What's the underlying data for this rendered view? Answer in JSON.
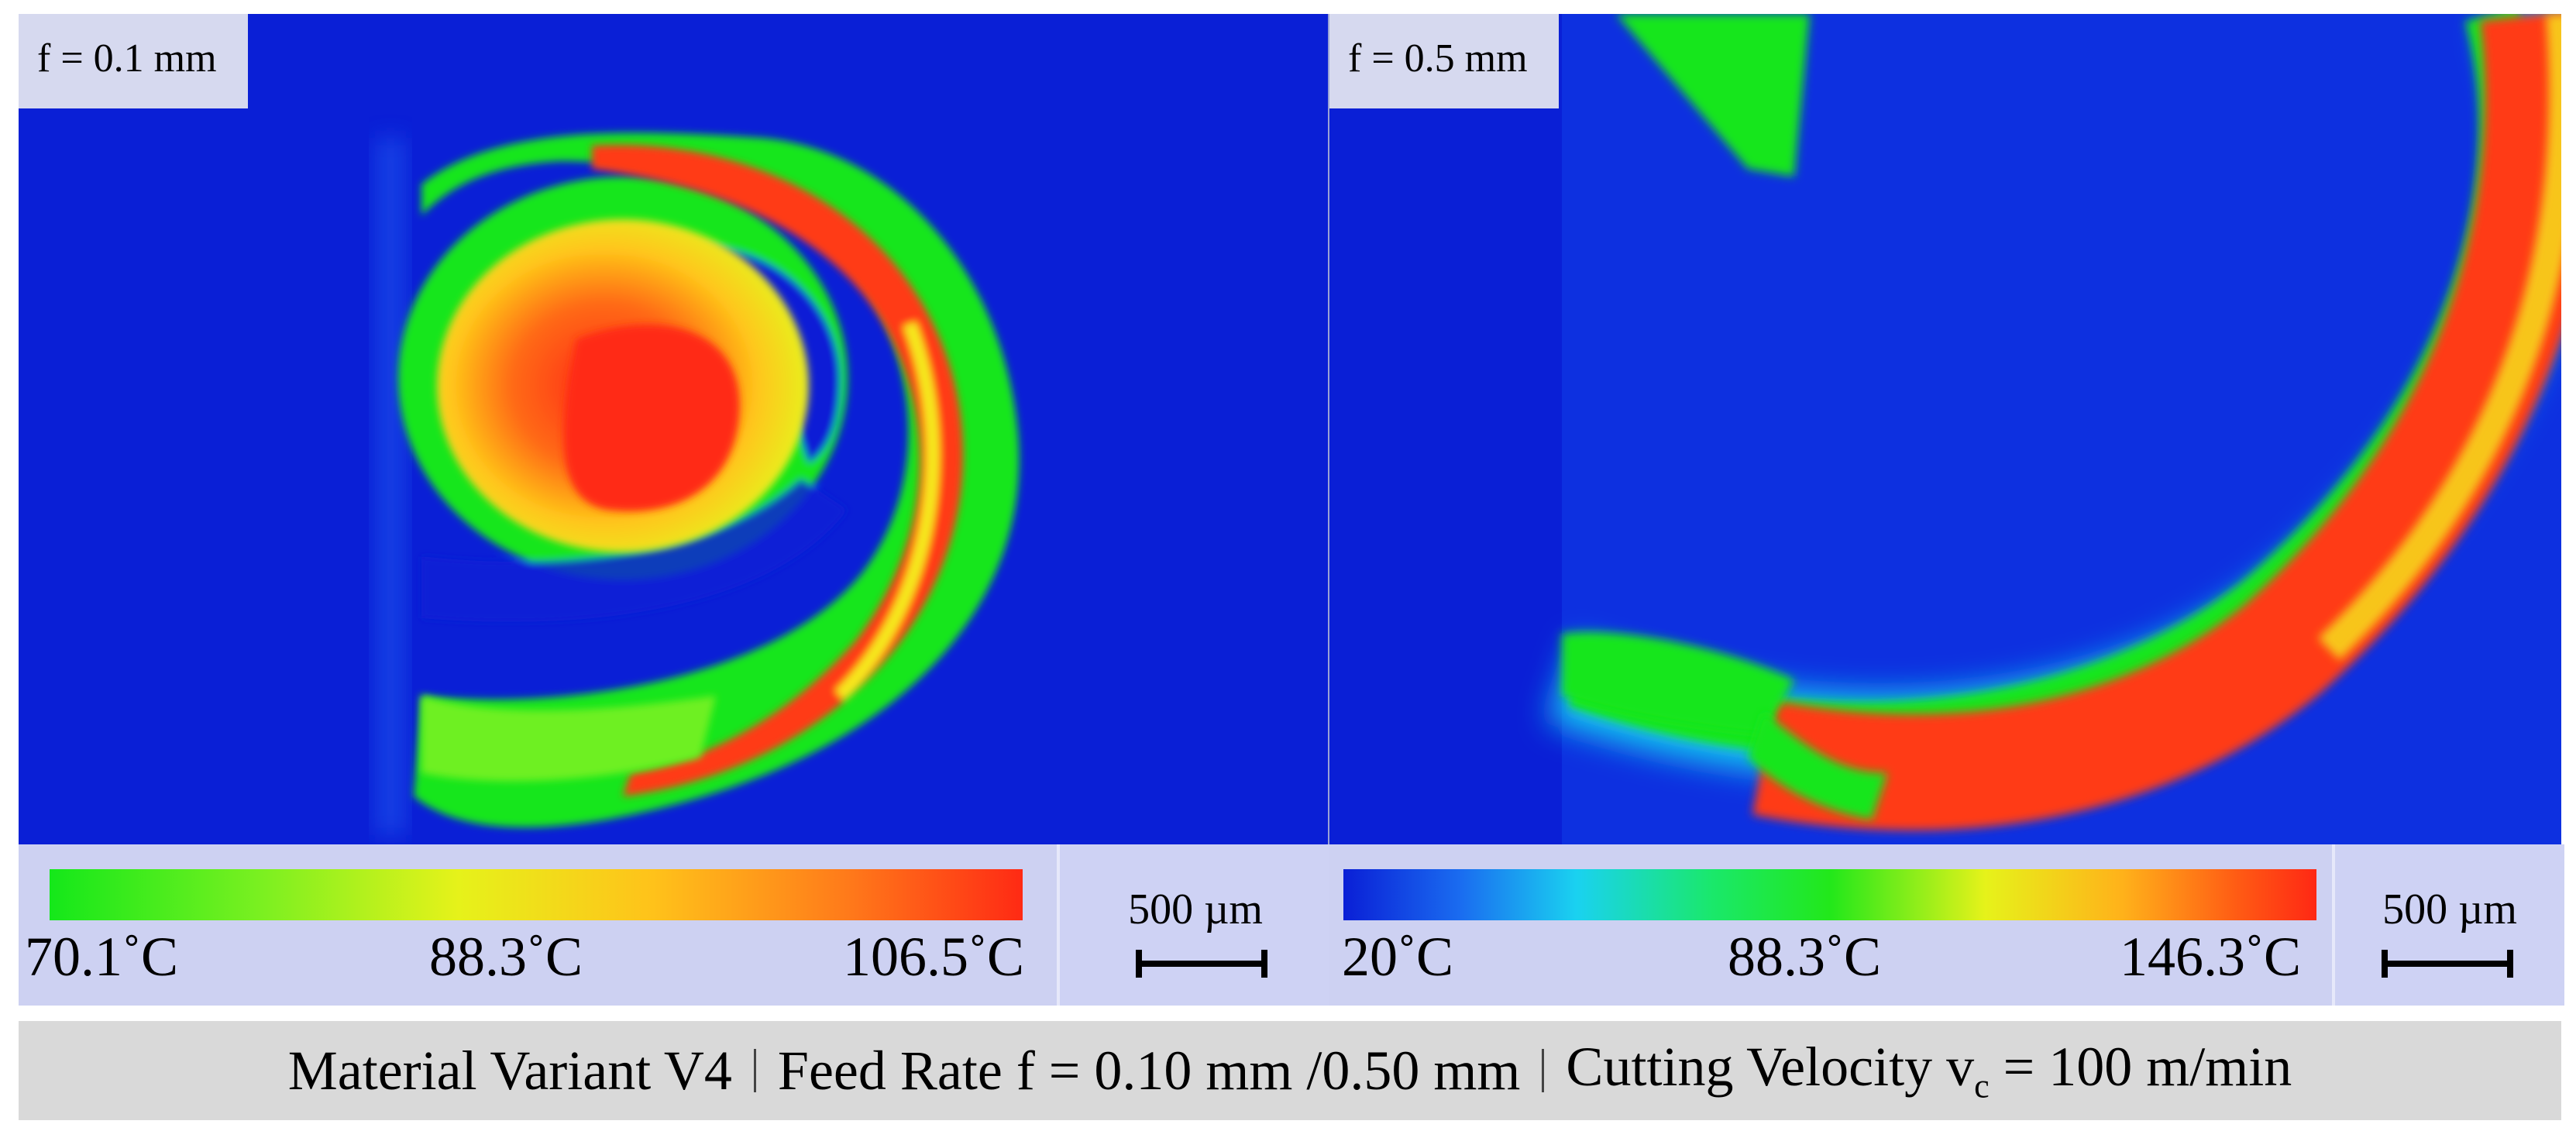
{
  "left_panel": {
    "label": "f = 0.1 mm",
    "legend": {
      "min": "70.1˚C",
      "mid": "88.3˚C",
      "max": "106.5˚C"
    },
    "scale": "500 µm"
  },
  "right_panel": {
    "label": "f = 0.5 mm",
    "legend": {
      "min": "20˚C",
      "mid": "88.3˚C",
      "max": "146.3˚C"
    },
    "scale": "500 µm"
  },
  "caption": {
    "part1": "Material Variant V4",
    "part2": "Feed Rate f = 0.10 mm /0.50 mm",
    "part3_prefix": "Cutting Velocity v",
    "part3_sub": "c",
    "part3_suffix": " = 100 m/min"
  },
  "colors": {
    "background_blue": "#0a1fd6",
    "hot_red": "#ff2a14",
    "warm_yellow": "#e6f21a",
    "cool_green": "#14e81a"
  }
}
